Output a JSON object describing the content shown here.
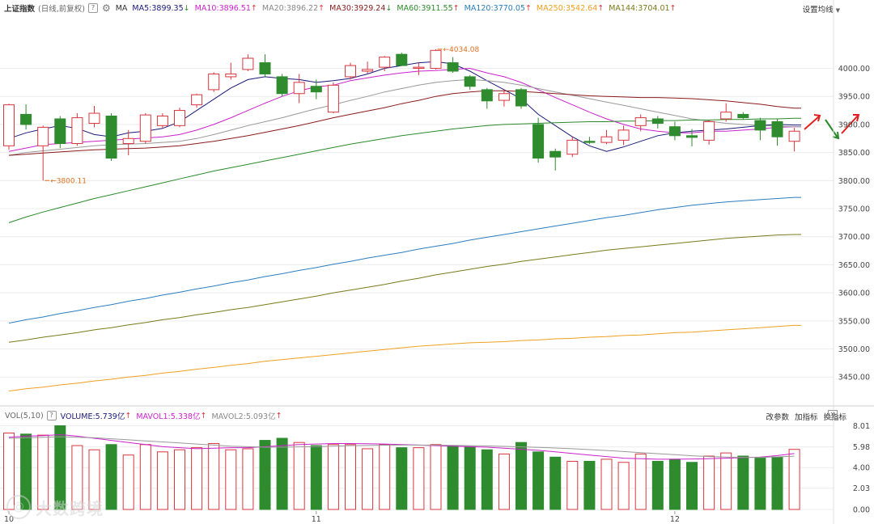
{
  "header": {
    "title": "上证指数",
    "subtitle": "(日线,前复权)",
    "help_icon": "?",
    "gear_icon": "gear-icon",
    "ma_label": "MA",
    "settings_label": "设置均线",
    "ma_items": [
      {
        "text": "MA5:3899.35",
        "arrow": "↓",
        "color": "#1a1a7a"
      },
      {
        "text": "MA10:3896.51",
        "arrow": "↑",
        "color": "#cc22cc"
      },
      {
        "text": "MA20:3896.22",
        "arrow": "↑",
        "color": "#888888"
      },
      {
        "text": "MA30:3929.24",
        "arrow": "↓",
        "color": "#8b1a1a"
      },
      {
        "text": "MA60:3911.55",
        "arrow": "↑",
        "color": "#2a8a2a"
      },
      {
        "text": "MA120:3770.05",
        "arrow": "↑",
        "color": "#2a7ec0"
      },
      {
        "text": "MA250:3542.64",
        "arrow": "↑",
        "color": "#f0a020"
      },
      {
        "text": "MA144:3704.01",
        "arrow": "↑",
        "color": "#7a7a1a"
      }
    ]
  },
  "volume_header": {
    "title": "VOL(5,10)",
    "help_icon": "?",
    "items": [
      {
        "text": "VOLUME:5.739亿",
        "arrow": "↑",
        "color": "#1a1a7a"
      },
      {
        "text": "MAVOL1:5.338亿",
        "arrow": "↑",
        "color": "#cc22cc"
      },
      {
        "text": "MAVOL2:5.093亿",
        "arrow": "↑",
        "color": "#888888"
      }
    ],
    "buttons": [
      "改参数",
      "加指标",
      "换指标"
    ],
    "close_icon": "✕"
  },
  "watermark": {
    "icon": "@",
    "text": "大数跨境"
  },
  "colors": {
    "up": "#d9363e",
    "down": "#2e8b2e",
    "grid": "#ececec",
    "axis_text": "#444444"
  },
  "chart_data": {
    "type": "candlestick",
    "y_axis": {
      "ticks": [
        "4000.00",
        "3950.00",
        "3900.00",
        "3850.00",
        "3800.00",
        "3750.00",
        "3700.00",
        "3650.00",
        "3600.00",
        "3550.00",
        "3500.00",
        "3450.00"
      ],
      "range": [
        3410,
        4080
      ]
    },
    "x_axis": {
      "month_labels": [
        {
          "label": "10",
          "index": 0
        },
        {
          "label": "11",
          "index": 18
        },
        {
          "label": "12",
          "index": 39
        }
      ]
    },
    "candles": [
      {
        "o": 3862,
        "h": 3937,
        "l": 3855,
        "c": 3935
      },
      {
        "o": 3918,
        "h": 3936,
        "l": 3891,
        "c": 3900
      },
      {
        "o": 3862,
        "h": 3898,
        "l": 3800,
        "c": 3895
      },
      {
        "o": 3910,
        "h": 3915,
        "l": 3858,
        "c": 3866
      },
      {
        "o": 3866,
        "h": 3920,
        "l": 3862,
        "c": 3912
      },
      {
        "o": 3902,
        "h": 3933,
        "l": 3895,
        "c": 3920
      },
      {
        "o": 3915,
        "h": 3920,
        "l": 3835,
        "c": 3840
      },
      {
        "o": 3866,
        "h": 3890,
        "l": 3845,
        "c": 3875
      },
      {
        "o": 3870,
        "h": 3920,
        "l": 3866,
        "c": 3917
      },
      {
        "o": 3898,
        "h": 3920,
        "l": 3893,
        "c": 3915
      },
      {
        "o": 3898,
        "h": 3930,
        "l": 3895,
        "c": 3925
      },
      {
        "o": 3935,
        "h": 3955,
        "l": 3930,
        "c": 3953
      },
      {
        "o": 3962,
        "h": 3993,
        "l": 3958,
        "c": 3990
      },
      {
        "o": 3985,
        "h": 4010,
        "l": 3980,
        "c": 3990
      },
      {
        "o": 3998,
        "h": 4025,
        "l": 3995,
        "c": 4018
      },
      {
        "o": 4010,
        "h": 4025,
        "l": 3985,
        "c": 3990
      },
      {
        "o": 3985,
        "h": 3990,
        "l": 3950,
        "c": 3955
      },
      {
        "o": 3955,
        "h": 3990,
        "l": 3938,
        "c": 3975
      },
      {
        "o": 3968,
        "h": 3980,
        "l": 3945,
        "c": 3958
      },
      {
        "o": 3922,
        "h": 3975,
        "l": 3920,
        "c": 3970
      },
      {
        "o": 3985,
        "h": 4010,
        "l": 3980,
        "c": 4005
      },
      {
        "o": 3995,
        "h": 4012,
        "l": 3990,
        "c": 3998
      },
      {
        "o": 4002,
        "h": 4022,
        "l": 3995,
        "c": 4020
      },
      {
        "o": 4025,
        "h": 4028,
        "l": 4005,
        "c": 4005
      },
      {
        "o": 4000,
        "h": 4010,
        "l": 3988,
        "c": 4002
      },
      {
        "o": 4000,
        "h": 4034,
        "l": 3998,
        "c": 4032
      },
      {
        "o": 4010,
        "h": 4020,
        "l": 3992,
        "c": 3995
      },
      {
        "o": 3985,
        "h": 3988,
        "l": 3962,
        "c": 3968
      },
      {
        "o": 3962,
        "h": 3965,
        "l": 3928,
        "c": 3942
      },
      {
        "o": 3943,
        "h": 3962,
        "l": 3932,
        "c": 3955
      },
      {
        "o": 3962,
        "h": 3965,
        "l": 3928,
        "c": 3933
      },
      {
        "o": 3900,
        "h": 3912,
        "l": 3832,
        "c": 3840
      },
      {
        "o": 3852,
        "h": 3857,
        "l": 3818,
        "c": 3842
      },
      {
        "o": 3847,
        "h": 3878,
        "l": 3842,
        "c": 3872
      },
      {
        "o": 3870,
        "h": 3878,
        "l": 3865,
        "c": 3868
      },
      {
        "o": 3868,
        "h": 3890,
        "l": 3865,
        "c": 3878
      },
      {
        "o": 3872,
        "h": 3898,
        "l": 3863,
        "c": 3890
      },
      {
        "o": 3898,
        "h": 3918,
        "l": 3888,
        "c": 3912
      },
      {
        "o": 3910,
        "h": 3915,
        "l": 3893,
        "c": 3902
      },
      {
        "o": 3896,
        "h": 3905,
        "l": 3872,
        "c": 3880
      },
      {
        "o": 3880,
        "h": 3892,
        "l": 3861,
        "c": 3877
      },
      {
        "o": 3872,
        "h": 3908,
        "l": 3864,
        "c": 3905
      },
      {
        "o": 3910,
        "h": 3938,
        "l": 3905,
        "c": 3922
      },
      {
        "o": 3918,
        "h": 3922,
        "l": 3909,
        "c": 3912
      },
      {
        "o": 3907,
        "h": 3912,
        "l": 3872,
        "c": 3890
      },
      {
        "o": 3905,
        "h": 3910,
        "l": 3862,
        "c": 3878
      },
      {
        "o": 3870,
        "h": 3894,
        "l": 3852,
        "c": 3888
      }
    ],
    "annotations": [
      {
        "label": "3800.11",
        "price": 3800.11,
        "index": 2
      },
      {
        "label": "4034.08",
        "price": 4034.08,
        "index": 25
      }
    ],
    "ma_lines": [
      {
        "name": "MA5",
        "color": "#1a1a7a",
        "values": [
          3875,
          3885,
          3892,
          3898,
          3893,
          3882,
          3878,
          3885,
          3888,
          3893,
          3905,
          3925,
          3945,
          3965,
          3980,
          3985,
          3982,
          3980,
          3975,
          3978,
          3982,
          3990,
          4000,
          4005,
          4010,
          4012,
          4008,
          3995,
          3978,
          3962,
          3946,
          3918,
          3898,
          3878,
          3862,
          3852,
          3860,
          3870,
          3880,
          3885,
          3888,
          3890,
          3892,
          3895,
          3898,
          3900,
          3899
        ]
      },
      {
        "name": "MA10",
        "color": "#cc22cc",
        "values": [
          3852,
          3858,
          3864,
          3866,
          3868,
          3870,
          3872,
          3874,
          3876,
          3878,
          3882,
          3890,
          3900,
          3912,
          3925,
          3938,
          3950,
          3960,
          3967,
          3970,
          3978,
          3983,
          3988,
          3992,
          3995,
          3996,
          3998,
          4000,
          3992,
          3985,
          3975,
          3962,
          3948,
          3935,
          3922,
          3910,
          3900,
          3892,
          3888,
          3885,
          3885,
          3888,
          3888,
          3890,
          3892,
          3895,
          3896
        ]
      },
      {
        "name": "MA20",
        "color": "#999999",
        "values": [
          3845,
          3850,
          3853,
          3856,
          3859,
          3862,
          3864,
          3865,
          3866,
          3868,
          3870,
          3875,
          3882,
          3890,
          3898,
          3905,
          3912,
          3920,
          3928,
          3935,
          3943,
          3950,
          3958,
          3964,
          3970,
          3975,
          3978,
          3980,
          3978,
          3975,
          3970,
          3964,
          3958,
          3952,
          3946,
          3940,
          3934,
          3928,
          3922,
          3916,
          3910,
          3906,
          3902,
          3900,
          3898,
          3897,
          3896
        ]
      },
      {
        "name": "MA30",
        "color": "#8b1a1a",
        "values": [
          3845,
          3847,
          3849,
          3851,
          3853,
          3855,
          3856,
          3857,
          3858,
          3860,
          3862,
          3866,
          3870,
          3875,
          3880,
          3886,
          3892,
          3898,
          3905,
          3912,
          3918,
          3924,
          3930,
          3937,
          3943,
          3950,
          3955,
          3958,
          3960,
          3960,
          3959,
          3957,
          3955,
          3953,
          3951,
          3950,
          3949,
          3948,
          3948,
          3947,
          3946,
          3944,
          3942,
          3939,
          3936,
          3932,
          3929
        ]
      },
      {
        "name": "MA60",
        "color": "#2a8a2a",
        "values": [
          3725,
          3735,
          3744,
          3752,
          3760,
          3768,
          3775,
          3782,
          3789,
          3796,
          3803,
          3810,
          3817,
          3823,
          3829,
          3835,
          3841,
          3847,
          3853,
          3859,
          3865,
          3870,
          3875,
          3880,
          3884,
          3888,
          3892,
          3895,
          3898,
          3900,
          3901,
          3902,
          3903,
          3904,
          3905,
          3905,
          3906,
          3906,
          3907,
          3907,
          3908,
          3908,
          3909,
          3909,
          3910,
          3910,
          3911
        ]
      },
      {
        "name": "MA120",
        "color": "#2a7ec0",
        "values": [
          3546,
          3552,
          3557,
          3563,
          3568,
          3574,
          3579,
          3585,
          3590,
          3596,
          3601,
          3607,
          3612,
          3618,
          3623,
          3629,
          3634,
          3640,
          3645,
          3651,
          3656,
          3662,
          3667,
          3672,
          3678,
          3683,
          3688,
          3694,
          3699,
          3704,
          3709,
          3714,
          3719,
          3724,
          3729,
          3734,
          3738,
          3743,
          3748,
          3752,
          3756,
          3759,
          3762,
          3764,
          3766,
          3768,
          3770
        ]
      },
      {
        "name": "MA144",
        "color": "#7a7a1a",
        "values": [
          3512,
          3516,
          3521,
          3525,
          3529,
          3534,
          3538,
          3543,
          3547,
          3552,
          3556,
          3561,
          3565,
          3570,
          3574,
          3579,
          3584,
          3589,
          3594,
          3600,
          3605,
          3610,
          3615,
          3621,
          3626,
          3632,
          3637,
          3642,
          3647,
          3651,
          3656,
          3660,
          3664,
          3668,
          3672,
          3676,
          3679,
          3682,
          3685,
          3688,
          3691,
          3694,
          3697,
          3699,
          3701,
          3703,
          3704
        ]
      },
      {
        "name": "MA250",
        "color": "#f0a020",
        "values": [
          3425,
          3429,
          3432,
          3436,
          3439,
          3443,
          3446,
          3450,
          3453,
          3457,
          3460,
          3464,
          3467,
          3471,
          3474,
          3478,
          3481,
          3484,
          3487,
          3490,
          3493,
          3496,
          3499,
          3502,
          3505,
          3507,
          3509,
          3511,
          3512,
          3513,
          3515,
          3516,
          3518,
          3519,
          3521,
          3522,
          3524,
          3525,
          3527,
          3529,
          3530,
          3532,
          3534,
          3536,
          3538,
          3540,
          3542
        ]
      }
    ],
    "volume": {
      "y_ticks": [
        "8.01",
        "5.98",
        "4.00",
        "2.03",
        "0.00"
      ],
      "range": [
        0,
        8.5
      ],
      "values": [
        7.3,
        7.2,
        7.1,
        8.0,
        6.1,
        5.7,
        6.2,
        5.2,
        6.2,
        5.5,
        5.7,
        5.9,
        6.3,
        5.7,
        5.8,
        6.6,
        6.8,
        6.4,
        6.1,
        6.2,
        6.2,
        5.8,
        6.2,
        5.9,
        5.9,
        6.2,
        6.1,
        6.0,
        5.7,
        5.3,
        6.4,
        5.5,
        5.0,
        4.6,
        4.6,
        4.8,
        4.5,
        5.3,
        4.6,
        4.8,
        4.5,
        5.1,
        5.4,
        5.1,
        4.9,
        5.0,
        5.74
      ],
      "mavol1": [
        6.9,
        7.0,
        7.05,
        7.15,
        7.0,
        6.8,
        6.6,
        6.4,
        6.2,
        6.0,
        5.9,
        5.8,
        5.85,
        5.9,
        5.9,
        6.0,
        6.1,
        6.2,
        6.25,
        6.3,
        6.3,
        6.28,
        6.25,
        6.2,
        6.15,
        6.1,
        6.05,
        6.0,
        5.95,
        5.85,
        5.75,
        5.65,
        5.5,
        5.35,
        5.2,
        5.05,
        4.9,
        4.85,
        4.8,
        4.8,
        4.82,
        4.85,
        4.9,
        4.95,
        5.0,
        5.15,
        5.34
      ],
      "mavol2": [
        6.8,
        6.85,
        6.9,
        6.95,
        6.9,
        6.85,
        6.75,
        6.65,
        6.55,
        6.45,
        6.35,
        6.25,
        6.15,
        6.05,
        6.0,
        5.95,
        5.95,
        5.98,
        6.0,
        6.05,
        6.1,
        6.12,
        6.14,
        6.15,
        6.15,
        6.14,
        6.12,
        6.1,
        6.07,
        6.03,
        5.98,
        5.93,
        5.87,
        5.8,
        5.72,
        5.63,
        5.53,
        5.43,
        5.33,
        5.23,
        5.13,
        5.05,
        5.0,
        4.98,
        4.98,
        5.02,
        5.09
      ]
    }
  }
}
